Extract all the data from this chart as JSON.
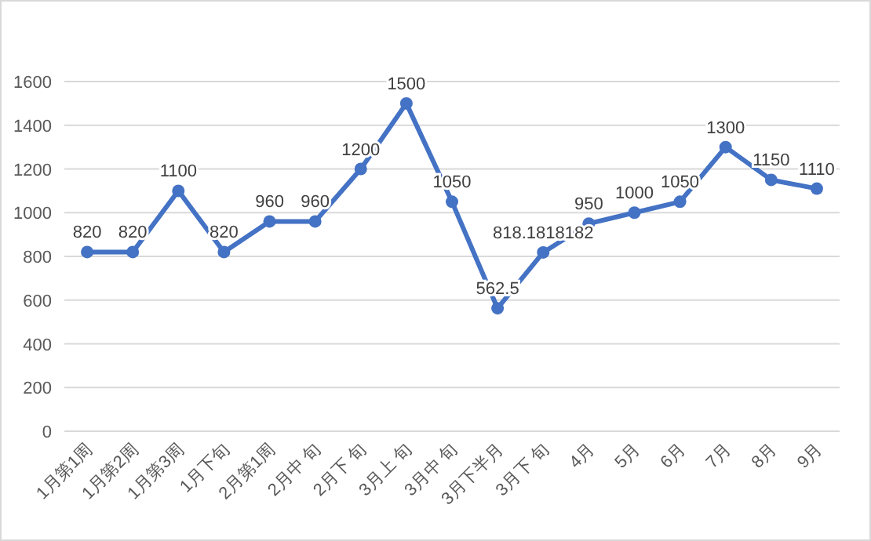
{
  "chart_data": {
    "type": "line",
    "categories": [
      "1月第1周",
      "1月第2周",
      "1月第3周",
      "1月下旬",
      "2月第1周",
      "2月中 旬",
      "2月下 旬",
      "3月上 旬",
      "3月中 旬",
      "3月下半月",
      "3月下 旬",
      "4月",
      "5月",
      "6月",
      "7月",
      "8月",
      "9月"
    ],
    "series": [
      {
        "color": "#4472c4",
        "values": [
          820,
          820,
          1100,
          820,
          960,
          960,
          1200,
          1500,
          1050,
          562.5,
          818.1818182,
          950,
          1000,
          1050,
          1300,
          1150,
          1110
        ]
      }
    ],
    "ylim": [
      0,
      1600
    ],
    "yticks": [
      0,
      200,
      400,
      600,
      800,
      1000,
      1200,
      1400,
      1600
    ],
    "grid": "y",
    "legend": false,
    "marker": "circle",
    "line_style": "solid",
    "data_labels": true
  }
}
